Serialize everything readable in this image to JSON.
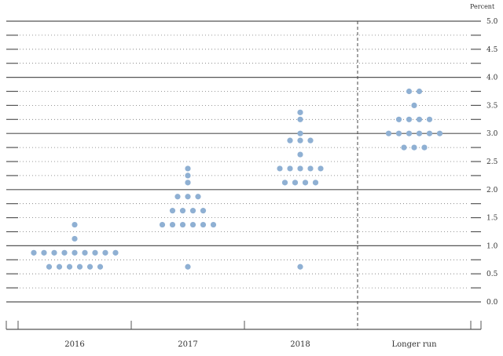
{
  "chart_data": {
    "type": "scatter",
    "ylabel": "Percent",
    "ylim": [
      0,
      5
    ],
    "yticks": [
      "0.0",
      "0.5",
      "1.0",
      "1.5",
      "2.0",
      "2.5",
      "3.0",
      "3.5",
      "4.0",
      "4.5",
      "5.0"
    ],
    "grid": true,
    "dot_color": "#8fb0d3",
    "categories": [
      "2016",
      "2017",
      "2018",
      "Longer run"
    ],
    "series": [
      {
        "category": "2016",
        "values": [
          {
            "y": 1.375,
            "n": 1
          },
          {
            "y": 1.125,
            "n": 1
          },
          {
            "y": 0.875,
            "n": 9
          },
          {
            "y": 0.625,
            "n": 6
          }
        ]
      },
      {
        "category": "2017",
        "values": [
          {
            "y": 2.375,
            "n": 1
          },
          {
            "y": 2.25,
            "n": 1
          },
          {
            "y": 2.125,
            "n": 1
          },
          {
            "y": 1.875,
            "n": 3
          },
          {
            "y": 1.625,
            "n": 4
          },
          {
            "y": 1.375,
            "n": 6
          },
          {
            "y": 0.625,
            "n": 1
          }
        ]
      },
      {
        "category": "2018",
        "values": [
          {
            "y": 3.375,
            "n": 1
          },
          {
            "y": 3.25,
            "n": 1
          },
          {
            "y": 3.0,
            "n": 1
          },
          {
            "y": 2.875,
            "n": 3
          },
          {
            "y": 2.625,
            "n": 1
          },
          {
            "y": 2.375,
            "n": 5
          },
          {
            "y": 2.125,
            "n": 4
          },
          {
            "y": 0.625,
            "n": 1
          }
        ]
      },
      {
        "category": "Longer run",
        "values": [
          {
            "y": 3.75,
            "n": 2
          },
          {
            "y": 3.5,
            "n": 1
          },
          {
            "y": 3.25,
            "n": 4
          },
          {
            "y": 3.0,
            "n": 6
          },
          {
            "y": 2.75,
            "n": 3
          }
        ]
      }
    ]
  }
}
